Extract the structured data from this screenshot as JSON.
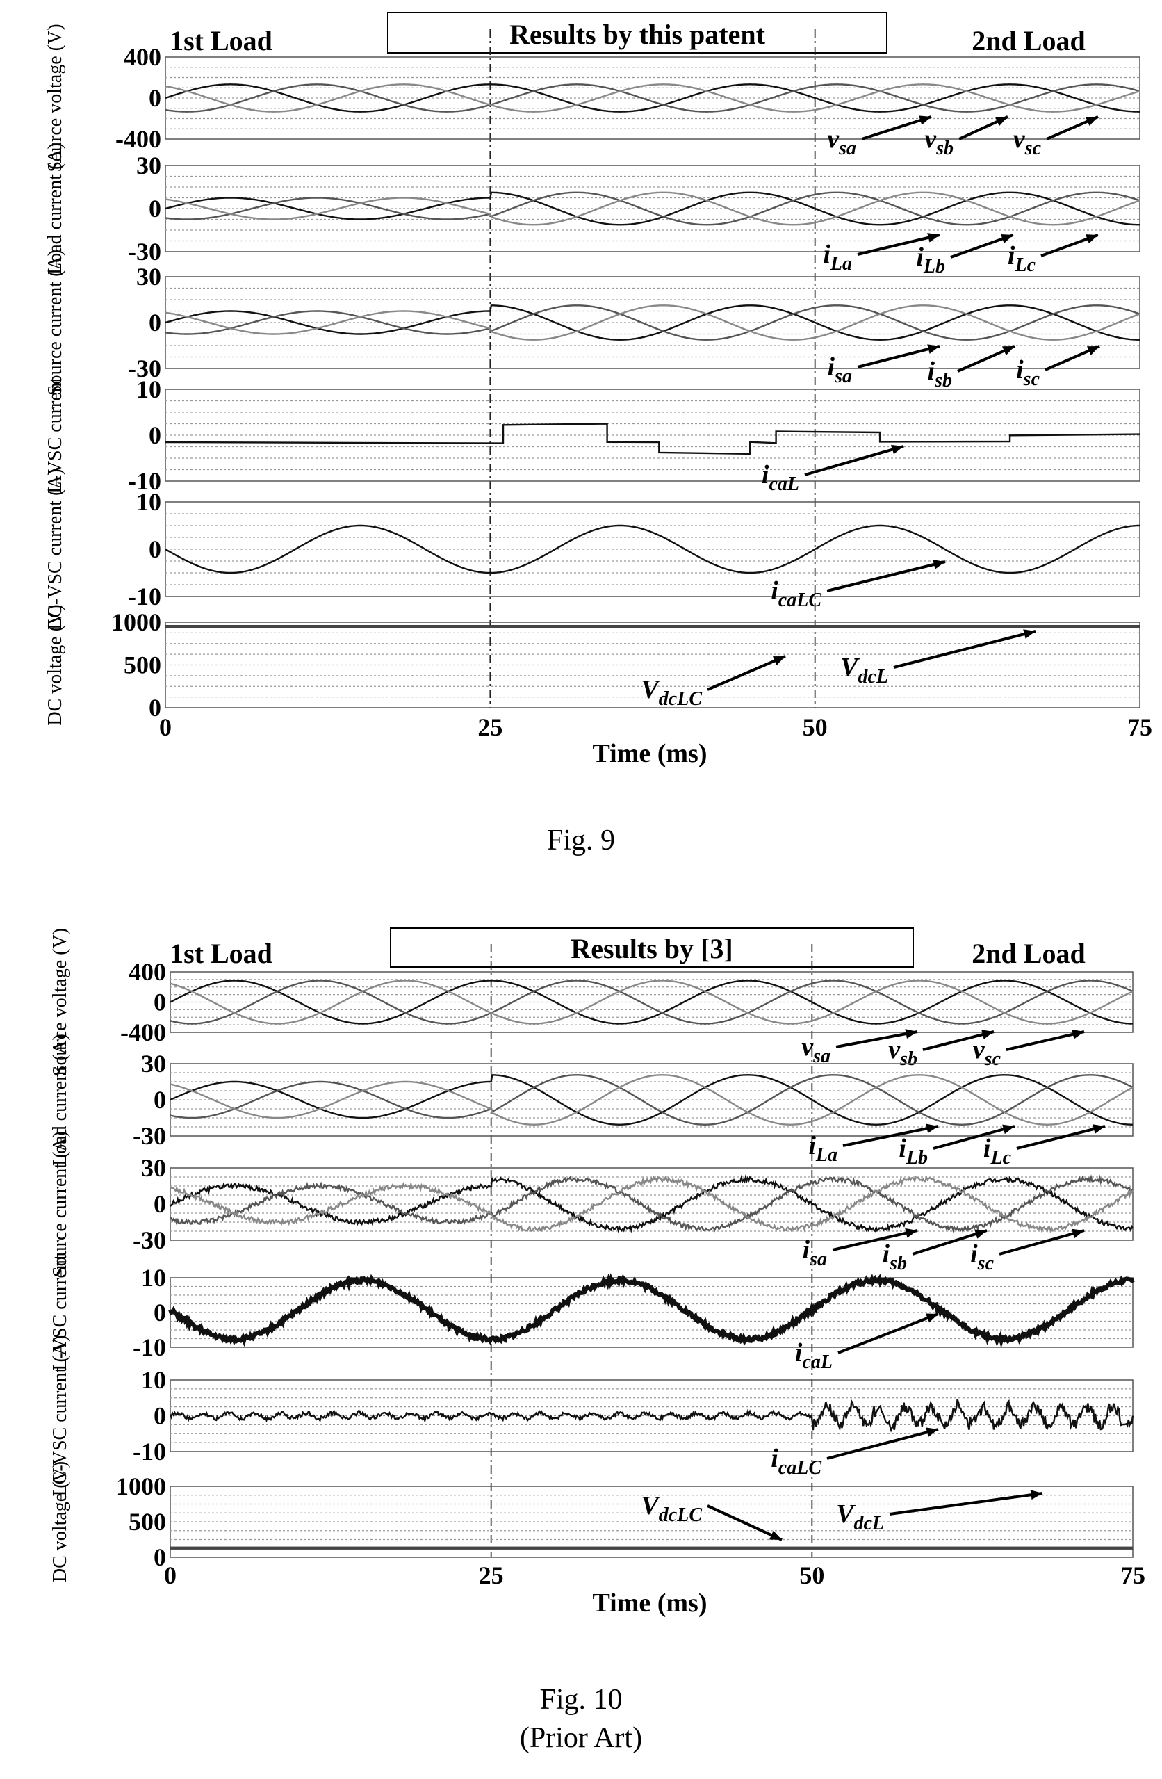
{
  "figures": [
    {
      "caption": "Fig. 9",
      "subcaption": "",
      "header_left": "1st Load",
      "header_center": "Results by this patent",
      "header_right": "2nd Load",
      "xlabel": "Time (ms)"
    },
    {
      "caption": "Fig. 10",
      "subcaption": "(Prior Art)",
      "header_left": "1st Load",
      "header_center": "Results by [3]",
      "header_right": "2nd Load",
      "xlabel": "Time (ms)"
    }
  ],
  "chart_data": [
    {
      "type": "line",
      "title": "Results by this patent",
      "xlabel": "Time (ms)",
      "xlim": [
        0,
        75
      ],
      "xticks": [
        "0",
        "25",
        "50",
        "75"
      ],
      "load_change_ms": [
        25,
        50
      ],
      "subplots": [
        {
          "ylabel": "Source voltage (V)",
          "yticks": [
            "400",
            "0",
            "-400"
          ],
          "ylim": [
            -450,
            450
          ],
          "series": [
            {
              "name": "vsa",
              "label": "v",
              "sub": "sa",
              "kind": "sine",
              "amplitude": 150,
              "freq_hz": 50,
              "phase_deg": 0,
              "color": "#111111"
            },
            {
              "name": "vsb",
              "label": "v",
              "sub": "sb",
              "kind": "sine",
              "amplitude": 150,
              "freq_hz": 50,
              "phase_deg": -120,
              "color": "#555555"
            },
            {
              "name": "vsc",
              "label": "v",
              "sub": "sc",
              "kind": "sine",
              "amplitude": 150,
              "freq_hz": 50,
              "phase_deg": 120,
              "color": "#888888"
            }
          ]
        },
        {
          "ylabel": "Load current (A)",
          "yticks": [
            "30",
            "0",
            "-30"
          ],
          "ylim": [
            -32,
            32
          ],
          "series": [
            {
              "name": "iLa",
              "label": "i",
              "sub": "La",
              "kind": "sine",
              "amplitude": 8,
              "amplitude2": 12,
              "freq_hz": 50,
              "phase_deg": 0,
              "color": "#111111"
            },
            {
              "name": "iLb",
              "label": "i",
              "sub": "Lb",
              "kind": "sine",
              "amplitude": 8,
              "amplitude2": 12,
              "freq_hz": 50,
              "phase_deg": -120,
              "color": "#555555"
            },
            {
              "name": "iLc",
              "label": "i",
              "sub": "Lc",
              "kind": "sine",
              "amplitude": 8,
              "amplitude2": 12,
              "freq_hz": 50,
              "phase_deg": 120,
              "color": "#888888"
            }
          ]
        },
        {
          "ylabel": "Source current (A)",
          "yticks": [
            "30",
            "0",
            "-30"
          ],
          "ylim": [
            -32,
            32
          ],
          "series": [
            {
              "name": "isa",
              "label": "i",
              "sub": "sa",
              "kind": "sine",
              "amplitude": 8,
              "amplitude2": 12,
              "freq_hz": 50,
              "phase_deg": 0,
              "color": "#111111"
            },
            {
              "name": "isb",
              "label": "i",
              "sub": "sb",
              "kind": "sine",
              "amplitude": 8,
              "amplitude2": 12,
              "freq_hz": 50,
              "phase_deg": -120,
              "color": "#555555"
            },
            {
              "name": "isc",
              "label": "i",
              "sub": "sc",
              "kind": "sine",
              "amplitude": 8,
              "amplitude2": 12,
              "freq_hz": 50,
              "phase_deg": 120,
              "color": "#888888"
            }
          ]
        },
        {
          "ylabel": "L-VSC current",
          "yticks": [
            "10",
            "0",
            "-10"
          ],
          "ylim": [
            -14,
            12
          ],
          "series": [
            {
              "name": "icaL",
              "label": "i",
              "sub": "caL",
              "kind": "steps",
              "points": [
                [
                  0,
                  -3
                ],
                [
                  26,
                  -3
                ],
                [
                  26,
                  2
                ],
                [
                  34,
                  2
                ],
                [
                  34,
                  -3
                ],
                [
                  38,
                  -3
                ],
                [
                  38,
                  -6
                ],
                [
                  45,
                  -6
                ],
                [
                  45,
                  -3
                ],
                [
                  47,
                  -3
                ],
                [
                  47,
                  0
                ],
                [
                  55,
                  0
                ],
                [
                  55,
                  -3
                ],
                [
                  65,
                  -3
                ],
                [
                  65,
                  -1
                ],
                [
                  75,
                  -1
                ]
              ],
              "color": "#111111"
            }
          ]
        },
        {
          "ylabel": "LC-VSC current (A)",
          "yticks": [
            "10",
            "0",
            "-10"
          ],
          "ylim": [
            -12,
            12
          ],
          "series": [
            {
              "name": "icaLC",
              "label": "i",
              "sub": "caLC",
              "kind": "sine",
              "amplitude": 6,
              "freq_hz": 50,
              "phase_deg": 180,
              "color": "#111111"
            }
          ]
        },
        {
          "ylabel": "DC voltage (V)",
          "yticks": [
            "1000",
            "500",
            "0"
          ],
          "ylim": [
            0,
            1000
          ],
          "series": [
            {
              "name": "VdcL",
              "label": "V",
              "sub": "dcL",
              "kind": "const",
              "value": 950,
              "color": "#111111"
            },
            {
              "name": "VdcLC",
              "label": "V",
              "sub": "dcLC",
              "kind": "const",
              "value": 950,
              "color": "#444444"
            }
          ]
        }
      ]
    },
    {
      "type": "line",
      "title": "Results by [3]",
      "xlabel": "Time (ms)",
      "xlim": [
        0,
        75
      ],
      "xticks": [
        "0",
        "25",
        "50",
        "75"
      ],
      "load_change_ms": [
        25,
        50
      ],
      "subplots": [
        {
          "ylabel": "Source voltage (V)",
          "yticks": [
            "400",
            "0",
            "-400"
          ],
          "ylim": [
            -450,
            450
          ],
          "series": [
            {
              "name": "vsa",
              "label": "v",
              "sub": "sa",
              "kind": "sine",
              "amplitude": 320,
              "freq_hz": 50,
              "phase_deg": 0,
              "color": "#111111"
            },
            {
              "name": "vsb",
              "label": "v",
              "sub": "sb",
              "kind": "sine",
              "amplitude": 320,
              "freq_hz": 50,
              "phase_deg": -120,
              "color": "#555555"
            },
            {
              "name": "vsc",
              "label": "v",
              "sub": "sc",
              "kind": "sine",
              "amplitude": 320,
              "freq_hz": 50,
              "phase_deg": 120,
              "color": "#888888"
            }
          ]
        },
        {
          "ylabel": "Load current (A)",
          "yticks": [
            "30",
            "0",
            "-30"
          ],
          "ylim": [
            -32,
            32
          ],
          "series": [
            {
              "name": "iLa",
              "label": "i",
              "sub": "La",
              "kind": "sine",
              "amplitude": 16,
              "amplitude2": 22,
              "freq_hz": 50,
              "phase_deg": 0,
              "color": "#111111"
            },
            {
              "name": "iLb",
              "label": "i",
              "sub": "Lb",
              "kind": "sine",
              "amplitude": 16,
              "amplitude2": 22,
              "freq_hz": 50,
              "phase_deg": -120,
              "color": "#555555"
            },
            {
              "name": "iLc",
              "label": "i",
              "sub": "Lc",
              "kind": "sine",
              "amplitude": 16,
              "amplitude2": 22,
              "freq_hz": 50,
              "phase_deg": 120,
              "color": "#888888"
            }
          ]
        },
        {
          "ylabel": "Source current (A)",
          "yticks": [
            "30",
            "0",
            "-30"
          ],
          "ylim": [
            -32,
            32
          ],
          "series": [
            {
              "name": "isa",
              "label": "i",
              "sub": "sa",
              "kind": "sine",
              "amplitude": 16,
              "amplitude2": 22,
              "freq_hz": 50,
              "phase_deg": 0,
              "noise": 2,
              "color": "#111111"
            },
            {
              "name": "isb",
              "label": "i",
              "sub": "sb",
              "kind": "sine",
              "amplitude": 16,
              "amplitude2": 22,
              "freq_hz": 50,
              "phase_deg": -120,
              "noise": 2,
              "color": "#555555"
            },
            {
              "name": "isc",
              "label": "i",
              "sub": "sc",
              "kind": "sine",
              "amplitude": 16,
              "amplitude2": 22,
              "freq_hz": 50,
              "phase_deg": 120,
              "noise": 2,
              "color": "#888888"
            }
          ]
        },
        {
          "ylabel": "L-VSC current",
          "yticks": [
            "10",
            "0",
            "-10"
          ],
          "ylim": [
            -14,
            12
          ],
          "series": [
            {
              "name": "icaL",
              "label": "i",
              "sub": "caL",
              "kind": "sine",
              "amplitude": 11,
              "freq_hz": 50,
              "phase_deg": 180,
              "noise": 0.8,
              "thick": true,
              "color": "#111111"
            }
          ]
        },
        {
          "ylabel": "LC-VSC current (A)",
          "yticks": [
            "10",
            "0",
            "-10"
          ],
          "ylim": [
            -12,
            12
          ],
          "series": [
            {
              "name": "icaLC",
              "label": "i",
              "sub": "caLC",
              "kind": "noise",
              "noise": 1.2,
              "noise2": 4,
              "color": "#111111"
            }
          ]
        },
        {
          "ylabel": "DC voltage (V)",
          "yticks": [
            "1000",
            "500",
            "0"
          ],
          "ylim": [
            0,
            1000
          ],
          "series": [
            {
              "name": "VdcL",
              "label": "V",
              "sub": "dcL",
              "kind": "const",
              "value": 130,
              "color": "#111111"
            },
            {
              "name": "VdcLC",
              "label": "V",
              "sub": "dcLC",
              "kind": "const",
              "value": 130,
              "color": "#444444"
            }
          ]
        }
      ]
    }
  ]
}
